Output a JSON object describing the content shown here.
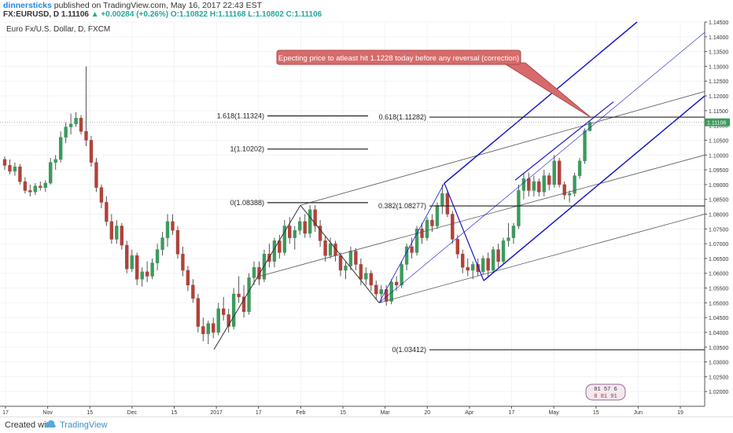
{
  "header": {
    "user": "dinnersticks",
    "published": "published on TradingView.com, May 16, 2017 22:43 EST",
    "symbol": "FX:EURUSD, D",
    "last": "1.11106",
    "change": "+0.00284 (+0.26%)",
    "open": "O:1.10822",
    "high": "H:1.11168",
    "low": "L:1.10802",
    "close": "C:1.11106"
  },
  "chart_data": {
    "type": "candlestick",
    "title": "Euro Fx/U.S. Dollar, D, FXCM",
    "ylim": [
      1.015,
      1.145
    ],
    "y_ticks": [
      1.145,
      1.14,
      1.135,
      1.13,
      1.125,
      1.12,
      1.115,
      1.11,
      1.105,
      1.1,
      1.095,
      1.09,
      1.085,
      1.08,
      1.075,
      1.07,
      1.065,
      1.06,
      1.055,
      1.05,
      1.045,
      1.04,
      1.035,
      1.03,
      1.025,
      1.02
    ],
    "x_ticks": [
      "17",
      "Nov",
      "15",
      "Dec",
      "15",
      "2017",
      "17",
      "Feb",
      "15",
      "Mar",
      "20",
      "Apr",
      "17",
      "May",
      "15",
      "Jun",
      "19"
    ],
    "current_price": "1.11106",
    "current_price_value": 1.11106,
    "fib_levels": [
      {
        "label": "1.618(1.11324)",
        "value": 1.11324
      },
      {
        "label": "1(1.10202)",
        "value": 1.10202
      },
      {
        "label": "0(1.08388)",
        "value": 1.08388
      },
      {
        "label": "0(1.03412)",
        "value": 1.03412
      },
      {
        "label": "0.618(1.11282)",
        "value": 1.11282
      },
      {
        "label": "0.382(1.08277)",
        "value": 1.08277
      }
    ],
    "annotation": "Epecting price to atleast hit 1.1228 today before any reversal (correction)",
    "candles": [
      [
        1.0985,
        1.0995,
        1.095,
        1.0965
      ],
      [
        1.0965,
        1.0985,
        1.0935,
        1.0945
      ],
      [
        1.0945,
        1.0975,
        1.093,
        1.096
      ],
      [
        1.096,
        1.097,
        1.09,
        1.091
      ],
      [
        1.091,
        1.0925,
        1.087,
        1.088
      ],
      [
        1.088,
        1.09,
        1.086,
        1.0875
      ],
      [
        1.0875,
        1.0905,
        1.0865,
        1.0895
      ],
      [
        1.0895,
        1.091,
        1.088,
        1.089
      ],
      [
        1.089,
        1.0915,
        1.0875,
        1.0905
      ],
      [
        1.0905,
        1.099,
        1.09,
        1.0975
      ],
      [
        1.0975,
        1.1,
        1.095,
        1.0985
      ],
      [
        1.0985,
        1.108,
        1.0975,
        1.106
      ],
      [
        1.106,
        1.111,
        1.104,
        1.1095
      ],
      [
        1.1095,
        1.114,
        1.107,
        1.1105
      ],
      [
        1.1105,
        1.1145,
        1.1095,
        1.1125
      ],
      [
        1.1125,
        1.1135,
        1.107,
        1.108
      ],
      [
        1.108,
        1.13,
        1.103,
        1.105
      ],
      [
        1.105,
        1.1065,
        1.096,
        1.0975
      ],
      [
        1.0975,
        1.099,
        1.0875,
        1.089
      ],
      [
        1.089,
        1.09,
        1.082,
        1.084
      ],
      [
        1.084,
        1.086,
        1.076,
        1.0775
      ],
      [
        1.0775,
        1.08,
        1.07,
        1.0715
      ],
      [
        1.0715,
        1.078,
        1.07,
        1.076
      ],
      [
        1.076,
        1.077,
        1.068,
        1.0695
      ],
      [
        1.0695,
        1.071,
        1.06,
        1.0615
      ],
      [
        1.0615,
        1.068,
        1.0605,
        1.066
      ],
      [
        1.066,
        1.067,
        1.056,
        1.058
      ],
      [
        1.058,
        1.062,
        1.0555,
        1.0605
      ],
      [
        1.0605,
        1.064,
        1.057,
        1.059
      ],
      [
        1.059,
        1.065,
        1.058,
        1.0635
      ],
      [
        1.0635,
        1.07,
        1.061,
        1.068
      ],
      [
        1.068,
        1.074,
        1.066,
        1.072
      ],
      [
        1.072,
        1.08,
        1.069,
        1.0775
      ],
      [
        1.0775,
        1.08,
        1.073,
        1.0745
      ],
      [
        1.0745,
        1.076,
        1.065,
        1.0665
      ],
      [
        1.0665,
        1.069,
        1.059,
        1.061
      ],
      [
        1.061,
        1.0625,
        1.054,
        1.056
      ],
      [
        1.056,
        1.058,
        1.05,
        1.0515
      ],
      [
        1.0515,
        1.053,
        1.04,
        1.042
      ],
      [
        1.042,
        1.045,
        1.037,
        1.0395
      ],
      [
        1.0395,
        1.044,
        1.036,
        1.043
      ],
      [
        1.043,
        1.045,
        1.038,
        1.04
      ],
      [
        1.04,
        1.05,
        1.039,
        1.048
      ],
      [
        1.048,
        1.052,
        1.044,
        1.046
      ],
      [
        1.046,
        1.048,
        1.04,
        1.042
      ],
      [
        1.042,
        1.055,
        1.041,
        1.053
      ],
      [
        1.053,
        1.059,
        1.05,
        1.052
      ],
      [
        1.052,
        1.056,
        1.045,
        1.047
      ],
      [
        1.047,
        1.06,
        1.046,
        1.0585
      ],
      [
        1.0585,
        1.064,
        1.056,
        1.062
      ],
      [
        1.062,
        1.064,
        1.056,
        1.058
      ],
      [
        1.058,
        1.068,
        1.057,
        1.0665
      ],
      [
        1.0665,
        1.07,
        1.062,
        1.064
      ],
      [
        1.064,
        1.072,
        1.062,
        1.071
      ],
      [
        1.071,
        1.073,
        1.065,
        1.067
      ],
      [
        1.067,
        1.078,
        1.066,
        1.076
      ],
      [
        1.076,
        1.079,
        1.07,
        1.072
      ],
      [
        1.072,
        1.076,
        1.068,
        1.0745
      ],
      [
        1.0745,
        1.079,
        1.073,
        1.0775
      ],
      [
        1.0775,
        1.08,
        1.072,
        1.0735
      ],
      [
        1.0735,
        1.083,
        1.072,
        1.0815
      ],
      [
        1.0815,
        1.083,
        1.074,
        1.076
      ],
      [
        1.076,
        1.078,
        1.069,
        1.071
      ],
      [
        1.071,
        1.0725,
        1.064,
        1.066
      ],
      [
        1.066,
        1.072,
        1.065,
        1.07
      ],
      [
        1.07,
        1.071,
        1.064,
        1.066
      ],
      [
        1.066,
        1.067,
        1.059,
        1.061
      ],
      [
        1.061,
        1.064,
        1.058,
        1.0625
      ],
      [
        1.0625,
        1.069,
        1.061,
        1.0675
      ],
      [
        1.0675,
        1.0685,
        1.061,
        1.063
      ],
      [
        1.063,
        1.065,
        1.056,
        1.058
      ],
      [
        1.058,
        1.062,
        1.056,
        1.06
      ],
      [
        1.06,
        1.061,
        1.054,
        1.056
      ],
      [
        1.056,
        1.0575,
        1.051,
        1.053
      ],
      [
        1.053,
        1.056,
        1.05,
        1.0545
      ],
      [
        1.0545,
        1.056,
        1.049,
        1.0505
      ],
      [
        1.0505,
        1.058,
        1.0495,
        1.057
      ],
      [
        1.057,
        1.059,
        1.054,
        1.056
      ],
      [
        1.056,
        1.064,
        1.055,
        1.063
      ],
      [
        1.063,
        1.07,
        1.061,
        1.069
      ],
      [
        1.069,
        1.072,
        1.065,
        1.067
      ],
      [
        1.067,
        1.076,
        1.066,
        1.075
      ],
      [
        1.075,
        1.077,
        1.07,
        1.072
      ],
      [
        1.072,
        1.079,
        1.071,
        1.078
      ],
      [
        1.078,
        1.08,
        1.074,
        1.076
      ],
      [
        1.076,
        1.084,
        1.075,
        1.083
      ],
      [
        1.083,
        1.09,
        1.08,
        1.087
      ],
      [
        1.087,
        1.088,
        1.079,
        1.08
      ],
      [
        1.08,
        1.081,
        1.07,
        1.0715
      ],
      [
        1.0715,
        1.073,
        1.065,
        1.0665
      ],
      [
        1.0665,
        1.068,
        1.06,
        1.062
      ],
      [
        1.062,
        1.065,
        1.059,
        1.061
      ],
      [
        1.061,
        1.064,
        1.058,
        1.063
      ],
      [
        1.063,
        1.065,
        1.059,
        1.0605
      ],
      [
        1.0605,
        1.066,
        1.0595,
        1.065
      ],
      [
        1.065,
        1.067,
        1.059,
        1.061
      ],
      [
        1.061,
        1.069,
        1.06,
        1.068
      ],
      [
        1.068,
        1.07,
        1.062,
        1.064
      ],
      [
        1.064,
        1.072,
        1.063,
        1.071
      ],
      [
        1.071,
        1.077,
        1.069,
        1.072
      ],
      [
        1.072,
        1.077,
        1.07,
        1.076
      ],
      [
        1.076,
        1.09,
        1.075,
        1.088
      ],
      [
        1.088,
        1.094,
        1.085,
        1.092
      ],
      [
        1.092,
        1.094,
        1.086,
        1.088
      ],
      [
        1.088,
        1.093,
        1.086,
        1.091
      ],
      [
        1.091,
        1.092,
        1.086,
        1.0875
      ],
      [
        1.0875,
        1.095,
        1.086,
        1.093
      ],
      [
        1.093,
        1.094,
        1.088,
        1.09
      ],
      [
        1.09,
        1.1,
        1.089,
        1.098
      ],
      [
        1.098,
        1.099,
        1.089,
        1.09
      ],
      [
        1.09,
        1.091,
        1.085,
        1.0865
      ],
      [
        1.0865,
        1.088,
        1.084,
        1.087
      ],
      [
        1.087,
        1.094,
        1.086,
        1.093
      ],
      [
        1.093,
        1.099,
        1.092,
        1.098
      ],
      [
        1.098,
        1.109,
        1.097,
        1.1082
      ],
      [
        1.1082,
        1.1117,
        1.108,
        1.1111
      ]
    ]
  },
  "footer": {
    "created_with": "Created with",
    "brand": "TradingView"
  },
  "stamp": {
    "row1": "01 57 6",
    "row2": "0 81 91"
  }
}
